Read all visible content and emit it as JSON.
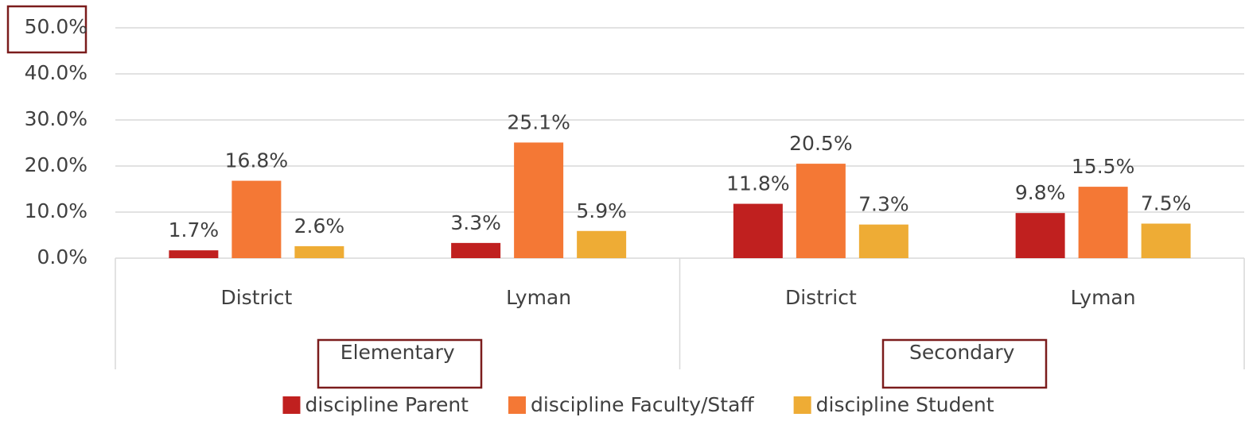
{
  "chart_data": {
    "type": "bar",
    "categories": [
      "District",
      "Lyman",
      "District",
      "Lyman"
    ],
    "groups": [
      "Elementary",
      "Secondary"
    ],
    "series": [
      {
        "name": "discipline Parent",
        "color": "#c0201f",
        "values": [
          1.7,
          3.3,
          11.8,
          9.8
        ],
        "value_labels": [
          "1.7%",
          "3.3%",
          "11.8%",
          "9.8%"
        ]
      },
      {
        "name": "discipline Faculty/Staff",
        "color": "#f47835",
        "values": [
          16.8,
          25.1,
          20.5,
          15.5
        ],
        "value_labels": [
          "16.8%",
          "25.1%",
          "20.5%",
          "15.5%"
        ]
      },
      {
        "name": "discipline Student",
        "color": "#eeac35",
        "values": [
          2.6,
          5.9,
          7.3,
          7.5
        ],
        "value_labels": [
          "2.6%",
          "5.9%",
          "7.3%",
          "7.5%"
        ]
      }
    ],
    "ylim": [
      0,
      50
    ],
    "yticks": [
      {
        "value": 0,
        "label": "0.0%"
      },
      {
        "value": 10,
        "label": "10.0%"
      },
      {
        "value": 20,
        "label": "20.0%"
      },
      {
        "value": 30,
        "label": "30.0%"
      },
      {
        "value": 40,
        "label": "40.0%"
      },
      {
        "value": 50,
        "label": "50.0%"
      }
    ],
    "grid": true,
    "legend": "bottom"
  }
}
